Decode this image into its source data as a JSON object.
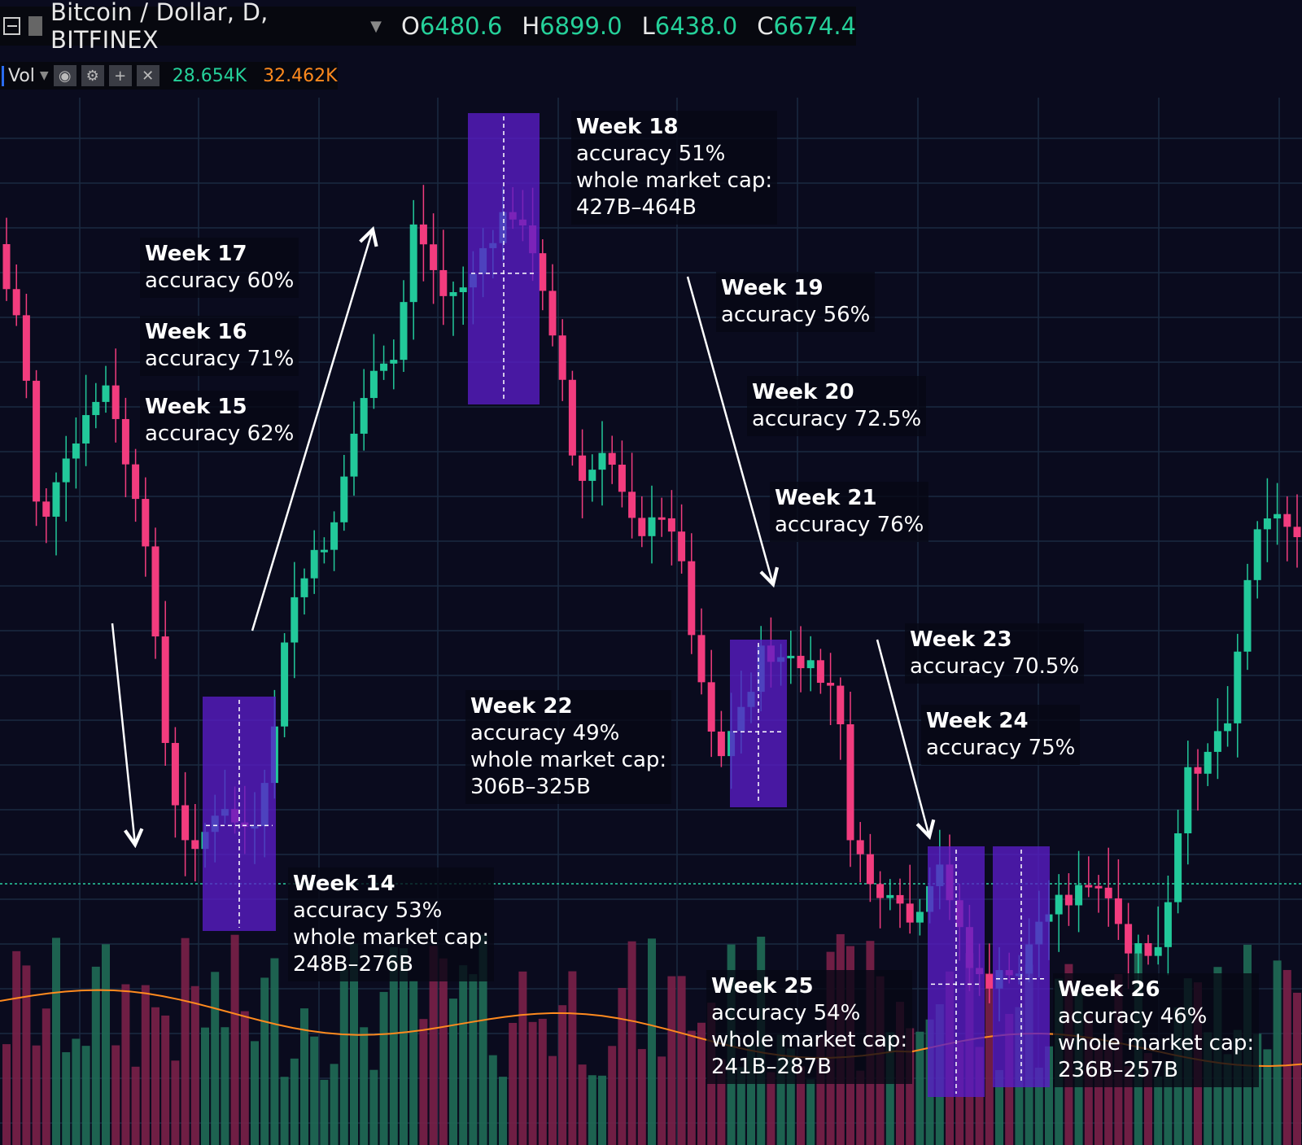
{
  "header": {
    "symbol": "Bitcoin / Dollar, D, BITFINEX",
    "open_key": "O",
    "open": "6480.6",
    "high_key": "H",
    "high": "6899.0",
    "low_key": "L",
    "low": "6438.0",
    "close_key": "C",
    "close": "6674.4"
  },
  "volume": {
    "label": "Vol",
    "value_green": "28.654K",
    "value_orange": "32.462K"
  },
  "annotations": {
    "w18": {
      "week": "Week 18",
      "accuracy": "accuracy 51%",
      "cap_label": "whole market cap:",
      "cap": "427B–464B"
    },
    "w17": {
      "week": "Week 17",
      "accuracy": "accuracy 60%"
    },
    "w16": {
      "week": "Week 16",
      "accuracy": "accuracy 71%"
    },
    "w15": {
      "week": "Week 15",
      "accuracy": "accuracy 62%"
    },
    "w19": {
      "week": "Week 19",
      "accuracy": "accuracy 56%"
    },
    "w20": {
      "week": "Week 20",
      "accuracy": "accuracy 72.5%"
    },
    "w21": {
      "week": "Week 21",
      "accuracy": "accuracy 76%"
    },
    "w23": {
      "week": "Week 23",
      "accuracy": "accuracy 70.5%"
    },
    "w24": {
      "week": "Week 24",
      "accuracy": "accuracy 75%"
    },
    "w22": {
      "week": "Week 22",
      "accuracy": "accuracy 49%",
      "cap_label": "whole market cap:",
      "cap": "306B–325B"
    },
    "w14": {
      "week": "Week 14",
      "accuracy": "accuracy 53%",
      "cap_label": "whole market cap:",
      "cap": "248B–276B"
    },
    "w25": {
      "week": "Week 25",
      "accuracy": "accuracy 54%",
      "cap_label": "whole market cap:",
      "cap": "241B–287B"
    },
    "w26": {
      "week": "Week 26",
      "accuracy": "accuracy 46%",
      "cap_label": "whole market cap:",
      "cap": "236B–257B"
    }
  },
  "colors": {
    "up": "#22c99a",
    "down": "#f23c7e",
    "highlight": "#5a1cc8",
    "background": "#0a0b1e",
    "ma_line": "#ff8a1e"
  }
}
